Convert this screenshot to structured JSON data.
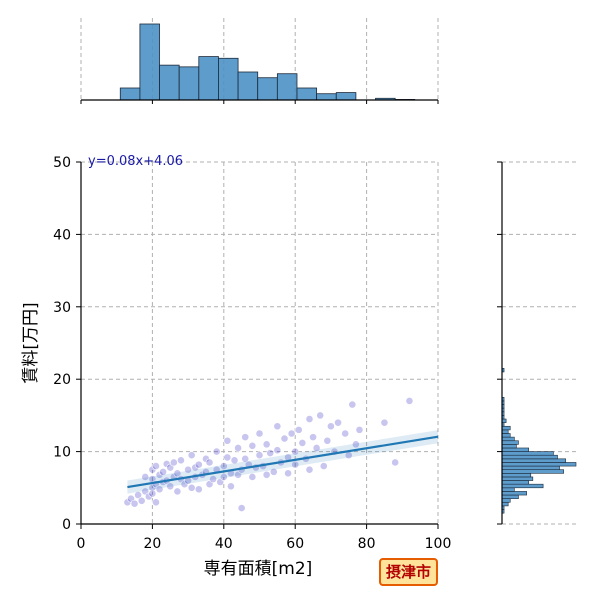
{
  "chart_data": {
    "type": "scatter",
    "xlabel": "専有面積[m2]",
    "ylabel": "賃料[万円]",
    "xlim": [
      0,
      100
    ],
    "ylim": [
      0,
      50
    ],
    "x_ticks": [
      "0",
      "20",
      "40",
      "60",
      "80",
      "100"
    ],
    "y_ticks": [
      "0",
      "10",
      "20",
      "30",
      "40",
      "50"
    ],
    "grid": true,
    "equation": "y=0.08x+4.06",
    "regression": {
      "slope": 0.08,
      "intercept": 4.06,
      "x_range": [
        13,
        100
      ]
    },
    "series": [
      {
        "type": "scatter",
        "color": "#3a2fc4",
        "points": [
          [
            13,
            3.0
          ],
          [
            14,
            3.5
          ],
          [
            15,
            2.8
          ],
          [
            16,
            4.0
          ],
          [
            17,
            3.2
          ],
          [
            18,
            4.5
          ],
          [
            18,
            6.5
          ],
          [
            19,
            3.8
          ],
          [
            20,
            5.0
          ],
          [
            20,
            6.2
          ],
          [
            20,
            7.5
          ],
          [
            20,
            4.2
          ],
          [
            21,
            8.0
          ],
          [
            21,
            5.5
          ],
          [
            21,
            3.0
          ],
          [
            22,
            6.8
          ],
          [
            22,
            4.8
          ],
          [
            23,
            7.2
          ],
          [
            23,
            5.8
          ],
          [
            24,
            8.3
          ],
          [
            24,
            6.0
          ],
          [
            25,
            5.2
          ],
          [
            25,
            7.8
          ],
          [
            26,
            6.5
          ],
          [
            26,
            8.5
          ],
          [
            27,
            4.5
          ],
          [
            27,
            7.0
          ],
          [
            28,
            6.2
          ],
          [
            28,
            8.8
          ],
          [
            29,
            5.5
          ],
          [
            30,
            7.5
          ],
          [
            30,
            6.0
          ],
          [
            31,
            9.5
          ],
          [
            31,
            5.0
          ],
          [
            32,
            7.8
          ],
          [
            32,
            6.5
          ],
          [
            33,
            8.2
          ],
          [
            33,
            4.8
          ],
          [
            34,
            6.8
          ],
          [
            35,
            7.2
          ],
          [
            35,
            9.0
          ],
          [
            36,
            5.5
          ],
          [
            36,
            8.5
          ],
          [
            37,
            6.2
          ],
          [
            38,
            7.5
          ],
          [
            38,
            10.0
          ],
          [
            39,
            5.8
          ],
          [
            40,
            8.0
          ],
          [
            40,
            6.5
          ],
          [
            41,
            9.2
          ],
          [
            41,
            11.5
          ],
          [
            42,
            7.0
          ],
          [
            42,
            5.2
          ],
          [
            43,
            8.8
          ],
          [
            44,
            10.5
          ],
          [
            44,
            6.8
          ],
          [
            45,
            7.5
          ],
          [
            45,
            2.2
          ],
          [
            46,
            9.0
          ],
          [
            46,
            12.0
          ],
          [
            47,
            8.2
          ],
          [
            48,
            6.5
          ],
          [
            48,
            10.8
          ],
          [
            49,
            7.8
          ],
          [
            50,
            9.5
          ],
          [
            50,
            12.5
          ],
          [
            51,
            8.0
          ],
          [
            52,
            6.8
          ],
          [
            52,
            11.0
          ],
          [
            53,
            9.8
          ],
          [
            54,
            7.2
          ],
          [
            55,
            10.2
          ],
          [
            55,
            13.5
          ],
          [
            56,
            8.5
          ],
          [
            57,
            11.8
          ],
          [
            58,
            9.2
          ],
          [
            58,
            7.0
          ],
          [
            59,
            12.5
          ],
          [
            60,
            10.0
          ],
          [
            60,
            8.2
          ],
          [
            61,
            13.0
          ],
          [
            62,
            11.2
          ],
          [
            63,
            9.0
          ],
          [
            64,
            14.5
          ],
          [
            64,
            7.5
          ],
          [
            65,
            12.0
          ],
          [
            66,
            10.5
          ],
          [
            67,
            15.0
          ],
          [
            68,
            8.0
          ],
          [
            69,
            11.5
          ],
          [
            70,
            13.5
          ],
          [
            71,
            10.0
          ],
          [
            72,
            14.0
          ],
          [
            74,
            12.5
          ],
          [
            75,
            9.5
          ],
          [
            76,
            16.5
          ],
          [
            77,
            11.0
          ],
          [
            78,
            13.0
          ],
          [
            85,
            14.0
          ],
          [
            88,
            8.5
          ],
          [
            92,
            17.0
          ]
        ]
      }
    ],
    "top_hist": {
      "bin_edges": [
        0,
        5.5,
        11,
        16.5,
        22,
        27.5,
        33,
        38.5,
        44,
        49.5,
        55,
        60.5,
        66,
        71.5,
        77,
        82.5,
        88,
        93.5,
        99
      ],
      "counts": [
        0,
        0,
        2.1,
        13.3,
        6.1,
        5.8,
        7.6,
        7.3,
        4.9,
        3.9,
        4.6,
        2.1,
        1.1,
        1.3,
        0,
        0.3,
        0.1,
        0
      ]
    },
    "right_hist": {
      "bin_edges": [
        1.5,
        2.0,
        2.5,
        3.0,
        3.5,
        4.0,
        4.5,
        5.0,
        5.5,
        6.0,
        6.5,
        7.0,
        7.5,
        8.0,
        8.5,
        9.0,
        9.5,
        10.0,
        10.5,
        11.0,
        11.5,
        12.0,
        12.5,
        13.0,
        13.5,
        14.0,
        14.5,
        15.0,
        15.5,
        16.0,
        16.5,
        17.0,
        17.5
      ],
      "counts": [
        1,
        1,
        3,
        4,
        8,
        12,
        6,
        20,
        13,
        15,
        14,
        30,
        28,
        36,
        31,
        27,
        25,
        13,
        7,
        8,
        6,
        4,
        3,
        4,
        1,
        2,
        1,
        1,
        1,
        1,
        1,
        1
      ],
      "outlier_bin": [
        21,
        21.5
      ],
      "outlier_count": 1
    }
  },
  "badge": {
    "label": "摂津市",
    "color": "#e65c00"
  }
}
